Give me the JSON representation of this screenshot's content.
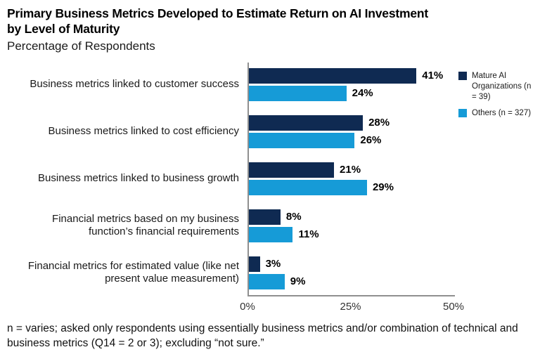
{
  "header": {
    "title_line1": "Primary Business Metrics Developed to Estimate Return on AI Investment",
    "title_line2": "by Level of Maturity",
    "subtitle": "Percentage of Respondents"
  },
  "chart_data": {
    "type": "bar",
    "orientation": "horizontal",
    "categories": [
      "Business metrics linked to customer success",
      "Business metrics linked to cost efficiency",
      "Business metrics linked to business growth",
      "Financial metrics based on my business function’s financial requirements",
      "Financial metrics for estimated value (like net present value measurement)"
    ],
    "series": [
      {
        "name": "Mature AI Organizations (n = 39)",
        "color": "#0f2a52",
        "values": [
          41,
          28,
          21,
          8,
          3
        ]
      },
      {
        "name": "Others (n = 327)",
        "color": "#169bd7",
        "values": [
          24,
          26,
          29,
          11,
          9
        ]
      }
    ],
    "value_suffix": "%",
    "xlim": [
      0,
      50
    ],
    "x_ticks": [
      "0%",
      "25%",
      "50%"
    ],
    "grid": false,
    "legend_position": "top-right",
    "axis_color": "#8f8f8f"
  },
  "legend": {
    "items": [
      {
        "label": "Mature AI Organizations (n = 39)",
        "color": "#0f2a52"
      },
      {
        "label": "Others (n = 327)",
        "color": "#169bd7"
      }
    ]
  },
  "footnote": "n = varies; asked only respondents using essentially business metrics and/or combination of technical and business metrics (Q14 = 2 or 3); excluding “not sure.”"
}
